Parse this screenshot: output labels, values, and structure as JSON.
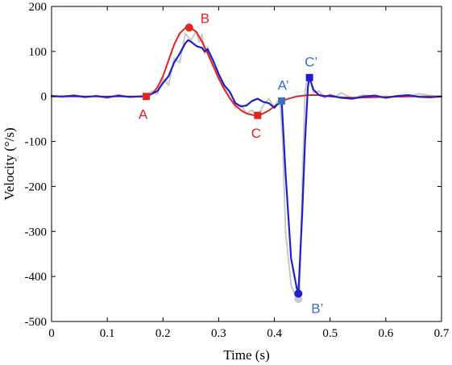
{
  "chart_data": {
    "type": "line",
    "title": "",
    "xlabel": "Time (s)",
    "ylabel": "Velocity (°/s)",
    "xlim": [
      0,
      0.7
    ],
    "ylim": [
      -500,
      200
    ],
    "xticks": [
      0,
      0.1,
      0.2,
      0.3,
      0.4,
      0.5,
      0.6,
      0.7
    ],
    "xtick_labels": [
      "0",
      "0.1",
      "0.2",
      "0.3",
      "0.4",
      "0.5",
      "0.6",
      "0.7"
    ],
    "yticks": [
      -500,
      -400,
      -300,
      -200,
      -100,
      0,
      100,
      200
    ],
    "ytick_labels": [
      "-500",
      "-400",
      "-300",
      "-200",
      "-100",
      "0",
      "100",
      "200"
    ],
    "grid": false,
    "series": [
      {
        "color": "#c8c8c8",
        "x": [
          0,
          0.02,
          0.04,
          0.06,
          0.08,
          0.1,
          0.12,
          0.14,
          0.16,
          0.17,
          0.18,
          0.19,
          0.2,
          0.21,
          0.22,
          0.23,
          0.24,
          0.25,
          0.26,
          0.265,
          0.27,
          0.275,
          0.28,
          0.29,
          0.3,
          0.31,
          0.32,
          0.33,
          0.34,
          0.35,
          0.36,
          0.37,
          0.38,
          0.39,
          0.4,
          0.405,
          0.41,
          0.415,
          0.42,
          0.43,
          0.44,
          0.445,
          0.45,
          0.455,
          0.46,
          0.465,
          0.47,
          0.48,
          0.49,
          0.5,
          0.51,
          0.52,
          0.54,
          0.56,
          0.58,
          0.6,
          0.62,
          0.64,
          0.66,
          0.68,
          0.7
        ],
        "y": [
          2,
          -2,
          3,
          -3,
          2,
          -4,
          3,
          -2,
          1,
          2,
          12,
          5,
          40,
          25,
          85,
          75,
          140,
          125,
          145,
          120,
          138,
          95,
          110,
          70,
          45,
          20,
          -5,
          -25,
          -20,
          -38,
          -30,
          -45,
          -20,
          -5,
          -25,
          -12,
          -8,
          -100,
          -300,
          -420,
          -450,
          -445,
          -200,
          10,
          45,
          35,
          8,
          12,
          -3,
          5,
          0,
          8,
          -4,
          3,
          0,
          -3,
          2,
          0,
          6,
          2,
          0
        ]
      },
      {
        "color": "#e8231f",
        "x": [
          0,
          0.05,
          0.1,
          0.15,
          0.17,
          0.18,
          0.19,
          0.2,
          0.21,
          0.22,
          0.23,
          0.24,
          0.25,
          0.26,
          0.27,
          0.28,
          0.29,
          0.3,
          0.31,
          0.32,
          0.33,
          0.34,
          0.35,
          0.36,
          0.37,
          0.38,
          0.39,
          0.4,
          0.41,
          0.42,
          0.44,
          0.46,
          0.48,
          0.5,
          0.52,
          0.55,
          0.6,
          0.65,
          0.7
        ],
        "y": [
          0,
          0,
          0,
          0,
          0,
          6,
          20,
          45,
          80,
          115,
          140,
          152,
          153,
          143,
          122,
          96,
          68,
          40,
          16,
          -4,
          -20,
          -31,
          -38,
          -41,
          -42,
          -38,
          -31,
          -22,
          -14,
          -7,
          0,
          3,
          3,
          0,
          -2,
          -3,
          -1,
          0,
          0
        ]
      },
      {
        "color": "#1f20c8",
        "x": [
          0,
          0.02,
          0.04,
          0.06,
          0.08,
          0.1,
          0.12,
          0.14,
          0.16,
          0.17,
          0.18,
          0.19,
          0.2,
          0.21,
          0.22,
          0.23,
          0.24,
          0.245,
          0.25,
          0.26,
          0.27,
          0.275,
          0.28,
          0.29,
          0.3,
          0.31,
          0.32,
          0.33,
          0.34,
          0.35,
          0.36,
          0.37,
          0.38,
          0.39,
          0.4,
          0.405,
          0.41,
          0.413,
          0.42,
          0.43,
          0.44,
          0.443,
          0.45,
          0.455,
          0.46,
          0.463,
          0.47,
          0.48,
          0.49,
          0.5,
          0.52,
          0.54,
          0.56,
          0.58,
          0.6,
          0.62,
          0.64,
          0.66,
          0.68,
          0.7
        ],
        "y": [
          1,
          0,
          2,
          -1,
          1,
          -2,
          2,
          -1,
          0,
          0,
          6,
          12,
          30,
          45,
          75,
          95,
          118,
          125,
          122,
          112,
          108,
          100,
          105,
          80,
          50,
          25,
          10,
          -15,
          -22,
          -20,
          -10,
          -5,
          -12,
          -15,
          -25,
          -18,
          -15,
          -10,
          -170,
          -360,
          -425,
          -438,
          -260,
          -100,
          20,
          42,
          15,
          3,
          0,
          2,
          -3,
          -5,
          0,
          2,
          -3,
          1,
          3,
          -1,
          -2,
          0
        ]
      }
    ],
    "markers": [
      {
        "label": "A",
        "x": 0.17,
        "y": 0,
        "shape": "square",
        "color": "#e8231f",
        "label_pos": "below-left"
      },
      {
        "label": "B",
        "x": 0.247,
        "y": 153,
        "shape": "circle",
        "color": "#e8231f",
        "label_pos": "right"
      },
      {
        "label": "C",
        "x": 0.37,
        "y": -42,
        "shape": "square",
        "color": "#e8231f",
        "label_pos": "below"
      },
      {
        "label": "A’",
        "x": 0.413,
        "y": -10,
        "shape": "square",
        "color": "#3a6fc4",
        "label_pos": "above"
      },
      {
        "label": "B’",
        "x": 0.443,
        "y": -438,
        "shape": "circle",
        "color": "#1f20c8",
        "label_pos": "below-right",
        "label_color": "#3a6fc4"
      },
      {
        "label": "C’",
        "x": 0.463,
        "y": 42,
        "shape": "square",
        "color": "#1f20c8",
        "label_pos": "above",
        "label_color": "#3a6fc4"
      },
      {
        "label": "",
        "x": 0.443,
        "y": -450,
        "shape": "circle",
        "color": "#c8c8c8",
        "label_pos": "none"
      }
    ]
  }
}
